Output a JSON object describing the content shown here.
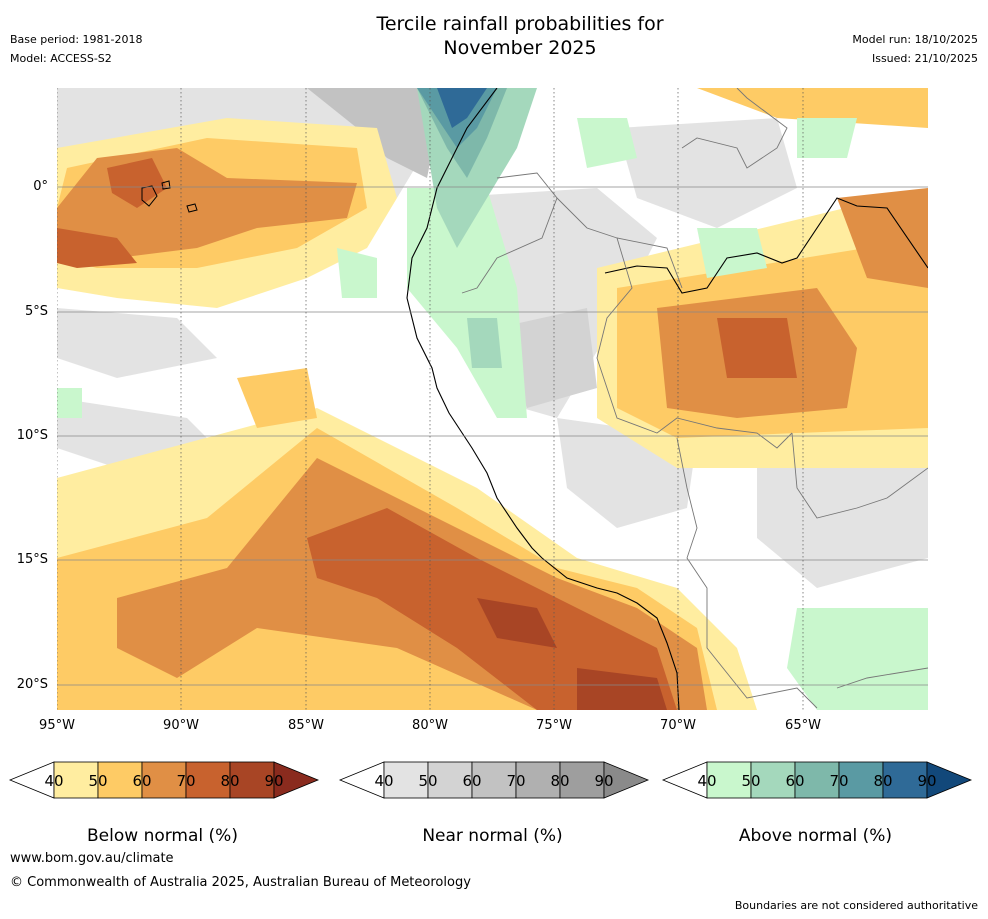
{
  "title_line1": "Tercile rainfall probabilities for",
  "title_line2": "November 2025",
  "base_period": "Base period: 1981-2018",
  "model": "Model: ACCESS-S2",
  "model_run": "Model run: 18/10/2025",
  "issued": "Issued: 21/10/2025",
  "lat_labels": [
    "0°",
    "5°S",
    "10°S",
    "15°S",
    "20°S"
  ],
  "lon_labels": [
    "95°W",
    "90°W",
    "85°W",
    "80°W",
    "75°W",
    "70°W",
    "65°W"
  ],
  "colorbars": [
    {
      "name": "below",
      "title": "Below normal (%)",
      "ticks": [
        "40",
        "50",
        "60",
        "70",
        "80",
        "90"
      ],
      "colors": [
        "#ffeda0",
        "#fecb65",
        "#e08f45",
        "#c8622e",
        "#a84525",
        "#8a2b1e"
      ]
    },
    {
      "name": "near",
      "title": "Near normal (%)",
      "ticks": [
        "40",
        "50",
        "60",
        "70",
        "80",
        "90"
      ],
      "colors": [
        "#e3e3e3",
        "#d3d3d3",
        "#c2c2c2",
        "#b0b0b0",
        "#9e9e9e",
        "#8a8a8a"
      ]
    },
    {
      "name": "above",
      "title": "Above normal (%)",
      "ticks": [
        "40",
        "50",
        "60",
        "70",
        "80",
        "90"
      ],
      "colors": [
        "#c9f7cd",
        "#a4d8bc",
        "#7eb8aa",
        "#5a9aa3",
        "#2f6a97",
        "#12487a"
      ]
    }
  ],
  "footer_url": "www.bom.gov.au/climate",
  "footer_copyright": "© Commonwealth of Australia 2025, Australian Bureau of Meteorology",
  "footer_disclaimer": "Boundaries are not considered authoritative"
}
